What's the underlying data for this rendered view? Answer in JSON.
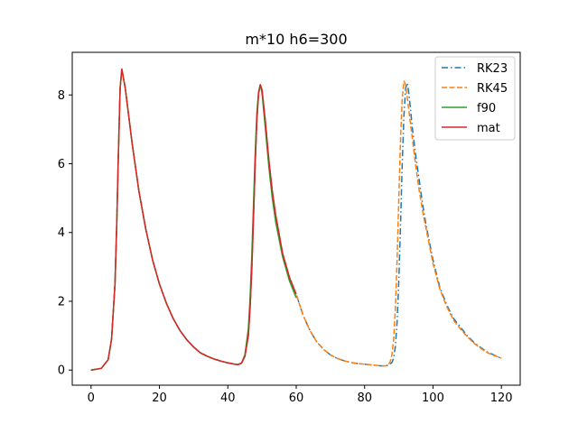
{
  "chart_data": {
    "type": "line",
    "title": "m*10 h6=300",
    "xlabel": "",
    "ylabel": "",
    "xlim": [
      -5.5,
      125.5
    ],
    "ylim": [
      -0.44,
      9.24
    ],
    "xticks": [
      0,
      20,
      40,
      60,
      80,
      100,
      120
    ],
    "yticks": [
      0,
      2,
      4,
      6,
      8
    ],
    "grid": false,
    "legend_position": "top-right",
    "series": [
      {
        "name": "RK23",
        "color": "#1f77b4",
        "dash": "dashdot",
        "x": [
          0,
          3,
          5,
          6,
          7,
          7.5,
          8,
          8.5,
          9,
          10,
          12,
          14,
          16,
          18,
          20,
          22,
          24,
          26,
          28,
          30,
          32,
          34,
          36,
          38,
          40,
          42,
          43,
          44,
          45,
          46,
          46.5,
          47,
          47.5,
          48,
          48.5,
          49,
          49.5,
          50,
          51,
          52,
          53,
          54,
          56,
          58,
          60,
          62,
          64,
          66,
          68,
          70,
          72,
          74,
          76,
          78,
          80,
          82,
          84,
          85,
          86,
          87,
          88,
          88.5,
          89,
          89.5,
          90,
          90.5,
          91,
          91.5,
          92,
          92.5,
          93,
          93.5,
          94,
          95,
          96,
          97,
          98,
          100,
          102,
          104,
          106,
          108,
          110,
          112,
          114,
          116,
          118,
          120
        ],
        "y": [
          0,
          0.05,
          0.3,
          0.9,
          2.5,
          4.2,
          6.3,
          8.2,
          8.75,
          8.2,
          6.6,
          5.2,
          4.1,
          3.2,
          2.5,
          1.95,
          1.5,
          1.15,
          0.88,
          0.67,
          0.5,
          0.4,
          0.32,
          0.26,
          0.21,
          0.17,
          0.16,
          0.2,
          0.4,
          1.0,
          1.8,
          2.9,
          4.4,
          6,
          7.3,
          8.05,
          8.3,
          8.15,
          7.2,
          6.1,
          5.2,
          4.5,
          3.4,
          2.7,
          2.2,
          1.6,
          1.15,
          0.82,
          0.6,
          0.44,
          0.34,
          0.27,
          0.22,
          0.19,
          0.17,
          0.15,
          0.13,
          0.12,
          0.12,
          0.14,
          0.22,
          0.35,
          0.7,
          1.4,
          2.6,
          4.2,
          6.0,
          7.4,
          8.2,
          8.35,
          8.0,
          7.5,
          7.0,
          6.2,
          5.5,
          4.8,
          4.2,
          3.2,
          2.4,
          1.9,
          1.5,
          1.25,
          1.0,
          0.8,
          0.65,
          0.52,
          0.43,
          0.34
        ]
      },
      {
        "name": "RK45",
        "color": "#ff7f0e",
        "dash": "dashed",
        "x": [
          0,
          3,
          5,
          6,
          7,
          7.5,
          8,
          8.5,
          9,
          10,
          12,
          14,
          16,
          18,
          20,
          22,
          24,
          26,
          28,
          30,
          32,
          34,
          36,
          38,
          40,
          42,
          43,
          44,
          45,
          46,
          46.5,
          47,
          47.5,
          48,
          48.5,
          49,
          49.5,
          50,
          51,
          52,
          53,
          54,
          56,
          58,
          60,
          62,
          64,
          66,
          68,
          70,
          72,
          74,
          76,
          78,
          80,
          82,
          84,
          85,
          86,
          87,
          87.5,
          88,
          88.5,
          89,
          89.5,
          90,
          90.5,
          91,
          91.5,
          92,
          92.5,
          93,
          94,
          95,
          96,
          97,
          98,
          100,
          102,
          104,
          106,
          108,
          110,
          112,
          114,
          116,
          118,
          120
        ],
        "y": [
          0,
          0.05,
          0.3,
          0.9,
          2.5,
          4.2,
          6.3,
          8.2,
          8.75,
          8.2,
          6.6,
          5.2,
          4.1,
          3.2,
          2.5,
          1.95,
          1.5,
          1.15,
          0.88,
          0.67,
          0.5,
          0.4,
          0.32,
          0.26,
          0.21,
          0.17,
          0.16,
          0.2,
          0.4,
          1.0,
          1.8,
          2.9,
          4.4,
          6,
          7.3,
          8.05,
          8.3,
          8.15,
          7.2,
          6.1,
          5.2,
          4.5,
          3.4,
          2.7,
          2.2,
          1.6,
          1.15,
          0.82,
          0.6,
          0.44,
          0.34,
          0.27,
          0.22,
          0.19,
          0.17,
          0.15,
          0.13,
          0.12,
          0.12,
          0.16,
          0.25,
          0.45,
          0.9,
          1.8,
          3.2,
          5.0,
          6.7,
          7.9,
          8.4,
          8.3,
          7.9,
          7.5,
          6.7,
          5.9,
          5.2,
          4.6,
          4.1,
          3.1,
          2.35,
          1.85,
          1.45,
          1.2,
          0.97,
          0.78,
          0.63,
          0.5,
          0.42,
          0.34
        ]
      },
      {
        "name": "f90",
        "color": "#2ca02c",
        "dash": "solid",
        "x": [
          0,
          3,
          5,
          6,
          7,
          7.5,
          8,
          8.5,
          9,
          10,
          12,
          14,
          16,
          18,
          20,
          22,
          24,
          26,
          28,
          30,
          32,
          34,
          36,
          38,
          40,
          42,
          43,
          44,
          45,
          46,
          46.5,
          47,
          47.5,
          48,
          48.5,
          49,
          49.5,
          50,
          51,
          52,
          53,
          54,
          56,
          58,
          60
        ],
        "y": [
          0,
          0.05,
          0.3,
          0.9,
          2.5,
          4.2,
          6.3,
          8.2,
          8.75,
          8.2,
          6.6,
          5.2,
          4.1,
          3.2,
          2.5,
          1.95,
          1.5,
          1.15,
          0.88,
          0.67,
          0.5,
          0.4,
          0.32,
          0.26,
          0.21,
          0.17,
          0.16,
          0.2,
          0.45,
          1.2,
          2.1,
          3.3,
          4.8,
          6.3,
          7.5,
          8.1,
          8.3,
          8.05,
          7.0,
          5.9,
          5.0,
          4.3,
          3.3,
          2.6,
          2.1
        ]
      },
      {
        "name": "mat",
        "color": "#d62728",
        "dash": "solid",
        "x": [
          0,
          3,
          5,
          6,
          7,
          7.5,
          8,
          8.5,
          9,
          10,
          12,
          14,
          16,
          18,
          20,
          22,
          24,
          26,
          28,
          30,
          32,
          34,
          36,
          38,
          40,
          42,
          43,
          44,
          45,
          46,
          46.5,
          47,
          47.5,
          48,
          48.5,
          49,
          49.5,
          50,
          51,
          52,
          53,
          54,
          56,
          58,
          60
        ],
        "y": [
          0,
          0.05,
          0.3,
          0.9,
          2.5,
          4.2,
          6.3,
          8.2,
          8.75,
          8.2,
          6.6,
          5.2,
          4.1,
          3.2,
          2.5,
          1.95,
          1.5,
          1.15,
          0.88,
          0.67,
          0.5,
          0.4,
          0.32,
          0.26,
          0.21,
          0.17,
          0.16,
          0.2,
          0.4,
          1.0,
          1.8,
          2.9,
          4.4,
          6,
          7.3,
          8.05,
          8.3,
          8.15,
          7.2,
          6.1,
          5.2,
          4.5,
          3.4,
          2.7,
          2.2
        ]
      }
    ]
  }
}
